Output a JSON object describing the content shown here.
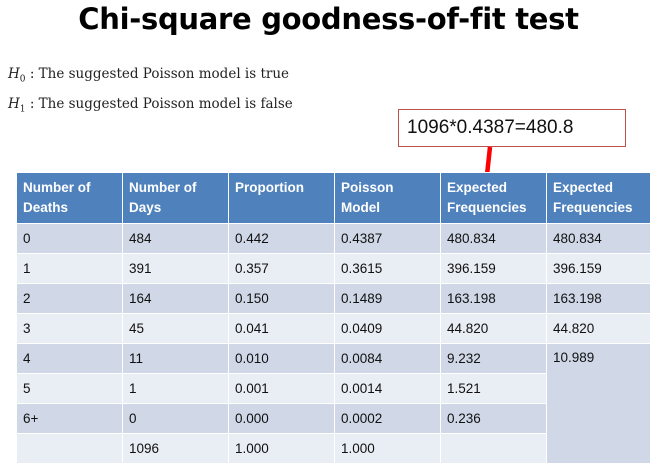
{
  "title": "Chi-square goodness-of-fit test",
  "hypotheses": {
    "h0_symbol": "H",
    "h0_sub": "0",
    "h0_text": ": The suggested Poisson model is true",
    "h1_symbol": "H",
    "h1_sub": "1",
    "h1_text": ": The suggested Poisson model is false"
  },
  "callout": "1096*0.4387=480.8",
  "colors": {
    "header": "#4f81bd",
    "row_dark": "#d0d8e8",
    "row_light": "#e9edf4",
    "arrow": "#ff0000",
    "callout_border": "#c0504d"
  },
  "table": {
    "headers": [
      "Number of Deaths",
      "Number of Days",
      "Proportion",
      "Poisson Model",
      "Expected Frequencies",
      "Expected Frequencies"
    ],
    "rows": [
      [
        "0",
        "484",
        "0.442",
        "0.4387",
        "480.834",
        "480.834"
      ],
      [
        "1",
        "391",
        "0.357",
        "0.3615",
        "396.159",
        "396.159"
      ],
      [
        "2",
        "164",
        "0.150",
        "0.1489",
        "163.198",
        "163.198"
      ],
      [
        "3",
        "45",
        "0.041",
        "0.0409",
        "44.820",
        "44.820"
      ],
      [
        "4",
        "11",
        "0.010",
        "0.0084",
        "9.232",
        "10.989"
      ],
      [
        "5",
        "1",
        "0.001",
        "0.0014",
        "1.521",
        ""
      ],
      [
        "6+",
        "0",
        "0.000",
        "0.0002",
        "0.236",
        ""
      ],
      [
        "",
        "1096",
        "1.000",
        "1.000",
        "",
        ""
      ]
    ]
  }
}
